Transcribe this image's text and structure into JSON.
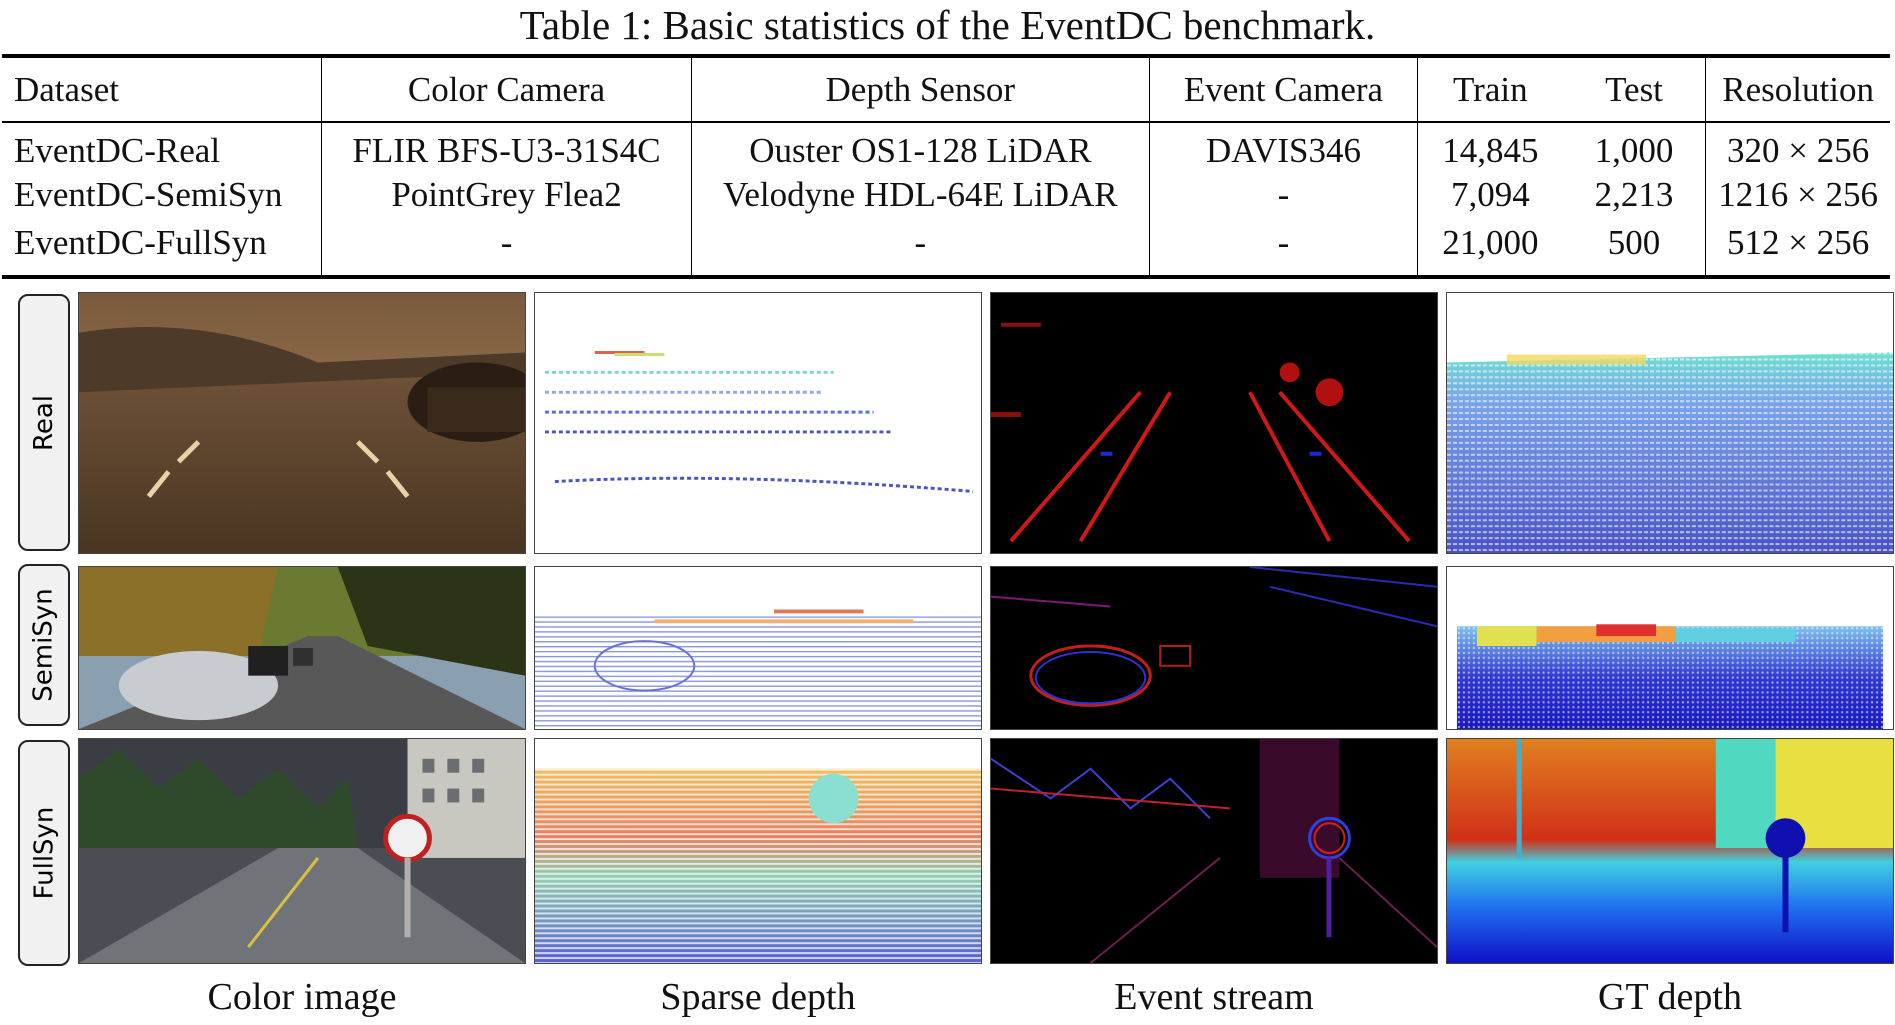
{
  "caption": "Table 1: Basic statistics of the EventDC benchmark.",
  "table": {
    "headers": [
      "Dataset",
      "Color Camera",
      "Depth Sensor",
      "Event Camera",
      "Train",
      "Test",
      "Resolution"
    ],
    "rows": [
      [
        "EventDC-Real",
        "FLIR BFS-U3-31S4C",
        "Ouster OS1-128 LiDAR",
        "DAVIS346",
        "14,845",
        "1,000",
        "320 × 256"
      ],
      [
        "EventDC-SemiSyn",
        "PointGrey Flea2",
        "Velodyne HDL-64E LiDAR",
        "-",
        "7,094",
        "2,213",
        "1216 × 256"
      ],
      [
        "EventDC-FullSyn",
        "-",
        "-",
        "-",
        "21,000",
        "500",
        "512 × 256"
      ]
    ]
  },
  "figure": {
    "row_labels": [
      "Real",
      "SemiSyn",
      "FullSyn"
    ],
    "column_captions": [
      "Color image",
      "Sparse depth",
      "Event stream",
      "GT depth"
    ]
  }
}
